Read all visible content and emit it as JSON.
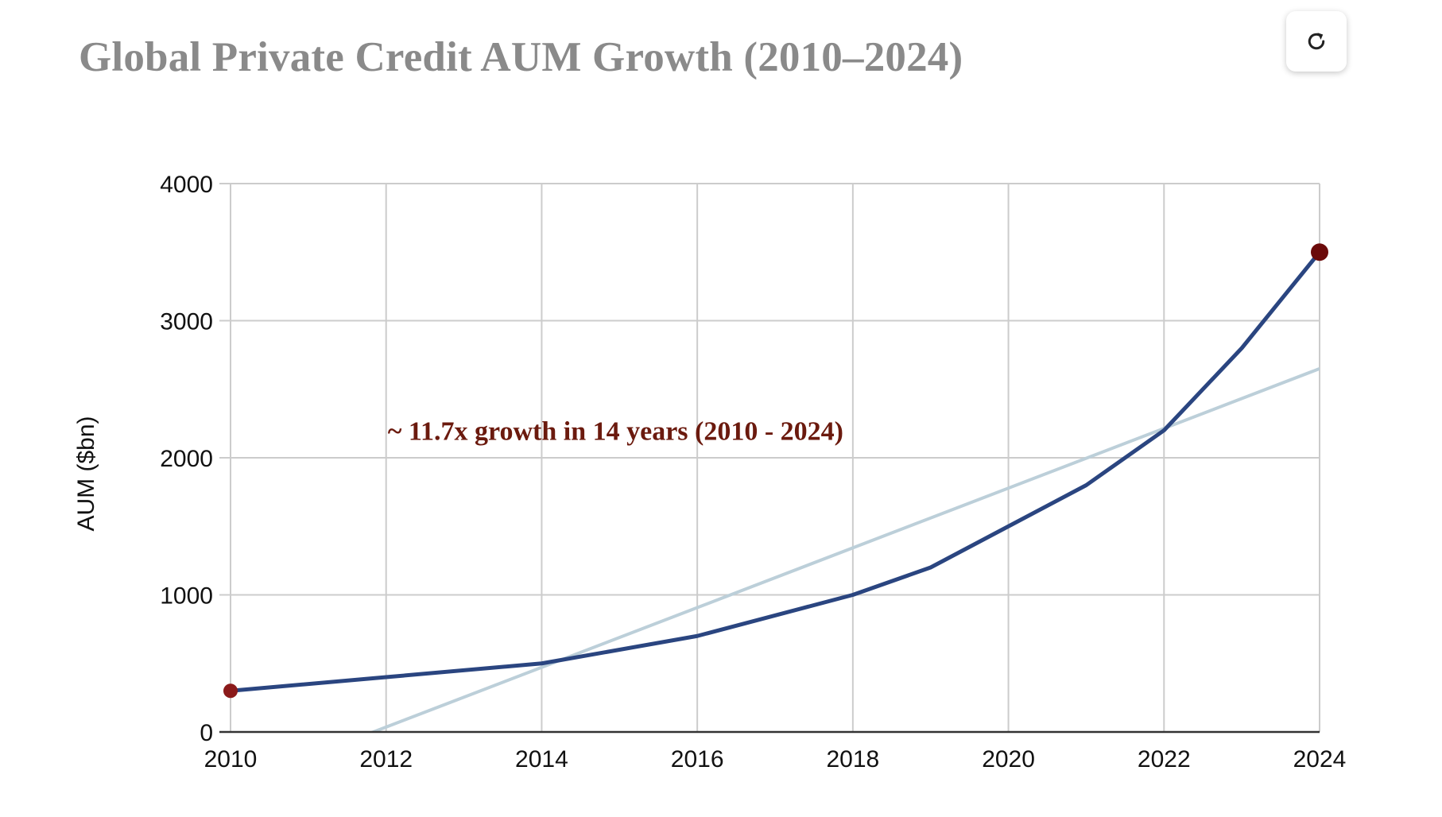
{
  "page": {
    "title": "Global Private Credit AUM Growth (2010–2024)",
    "refresh_icon": "refresh-icon"
  },
  "chart_data": {
    "type": "line",
    "title": "Global Private Credit AUM Growth (2010–2024)",
    "xlabel": "",
    "ylabel": "AUM ($bn)",
    "xlim": [
      2010,
      2024
    ],
    "ylim": [
      0,
      4000
    ],
    "x_ticks": [
      2010,
      2012,
      2014,
      2016,
      2018,
      2020,
      2022,
      2024
    ],
    "y_ticks": [
      0,
      1000,
      2000,
      3000,
      4000
    ],
    "grid": true,
    "legend": "none",
    "series": [
      {
        "x": [
          2010,
          2012,
          2014,
          2016,
          2018,
          2019,
          2020,
          2021,
          2022,
          2023,
          2024
        ],
        "values": [
          300,
          400,
          500,
          700,
          1000,
          1200,
          1500,
          1800,
          2200,
          2800,
          3500
        ],
        "color": "#2a4580"
      }
    ],
    "trendline": {
      "x": [
        2010,
        2024
      ],
      "values": [
        -400,
        2650
      ],
      "color": "#bccfd9"
    },
    "highlighted_points": [
      {
        "x": 2010,
        "y": 300,
        "color": "#8b1a1a"
      },
      {
        "x": 2024,
        "y": 3500,
        "color": "#6b0a0a"
      }
    ],
    "annotations": [
      {
        "text": "~ 11.7x growth in 14 years (2010 - 2024)",
        "x": 2012,
        "y": 2200,
        "color": "#6b1a0e"
      }
    ],
    "colors": {
      "grid": "#cccccc",
      "axis": "#333333"
    }
  }
}
